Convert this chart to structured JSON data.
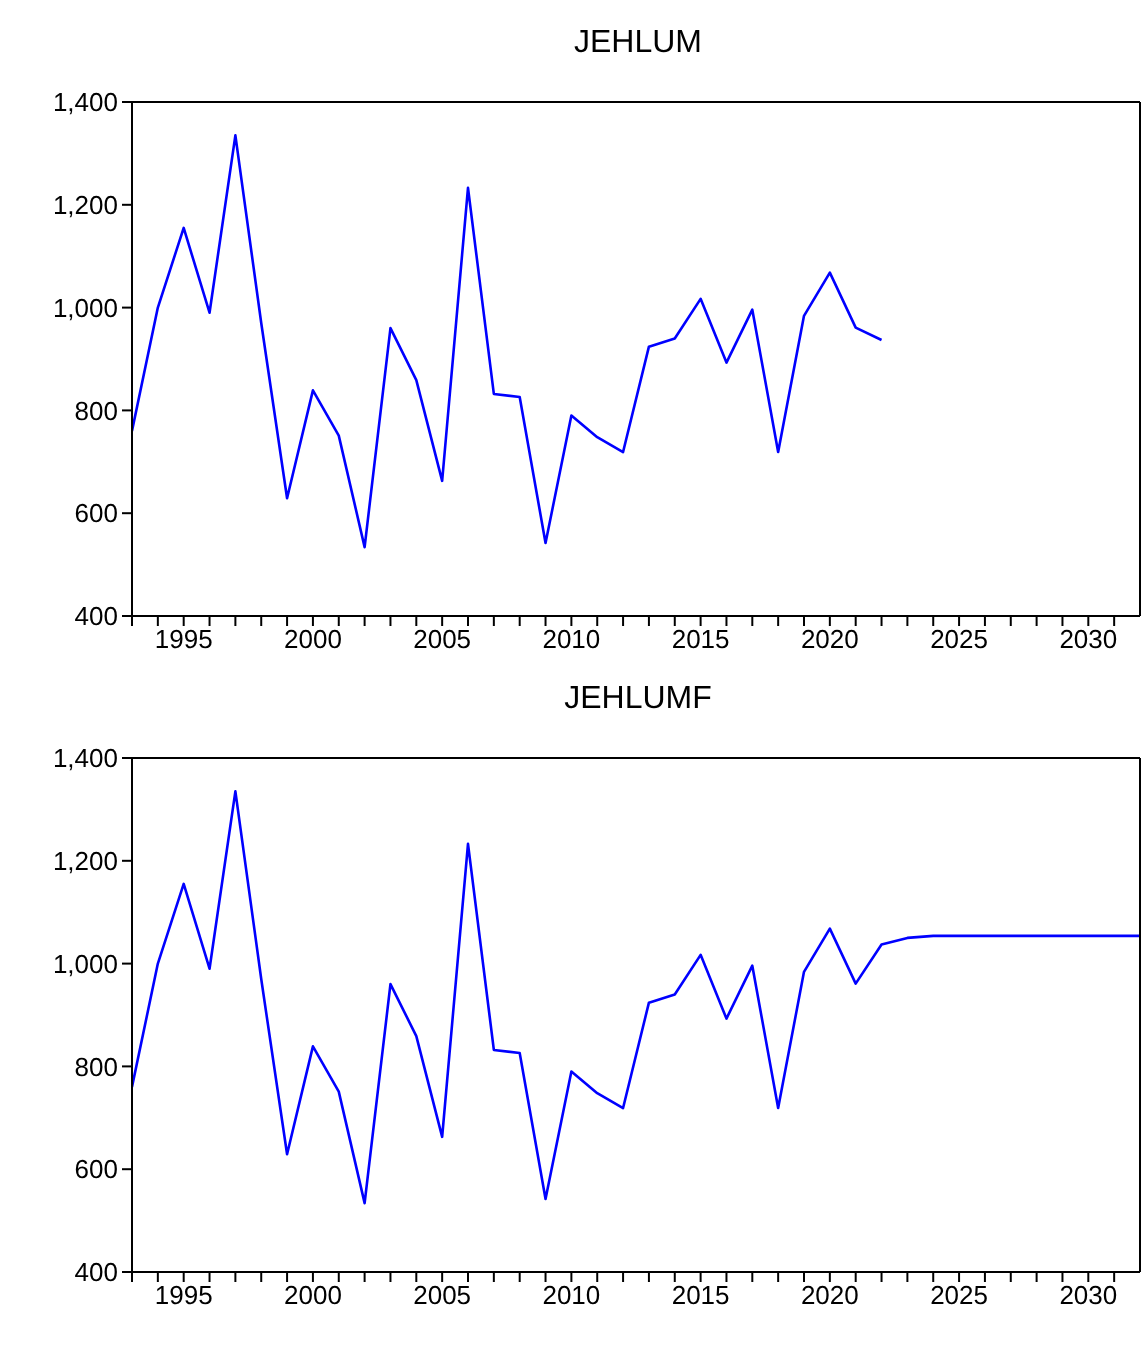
{
  "chart_data": [
    {
      "type": "line",
      "title": "JEHLUM",
      "x": [
        1993,
        1994,
        1995,
        1996,
        1997,
        1998,
        1999,
        2000,
        2001,
        2002,
        2003,
        2004,
        2005,
        2006,
        2007,
        2008,
        2009,
        2010,
        2011,
        2012,
        2013,
        2014,
        2015,
        2016,
        2017,
        2018,
        2019,
        2020,
        2021,
        2022
      ],
      "series": [
        {
          "color": "#0000ff",
          "values": [
            760,
            1000,
            1155,
            990,
            1335,
            970,
            629,
            839,
            751,
            534,
            960,
            859,
            663,
            1233,
            832,
            826,
            542,
            790,
            748,
            719,
            924,
            940,
            1017,
            893,
            996,
            719,
            984,
            1068,
            961,
            937
          ]
        }
      ],
      "xlim": [
        1993,
        2032
      ],
      "xticks": [
        {
          "value": 1993,
          "label": null
        },
        {
          "value": 1994,
          "label": null
        },
        1995,
        {
          "value": 1996,
          "label": null
        },
        {
          "value": 1997,
          "label": null
        },
        {
          "value": 1998,
          "label": null
        },
        {
          "value": 1999,
          "label": null
        },
        2000,
        {
          "value": 2001,
          "label": null
        },
        {
          "value": 2002,
          "label": null
        },
        {
          "value": 2003,
          "label": null
        },
        {
          "value": 2004,
          "label": null
        },
        2005,
        {
          "value": 2006,
          "label": null
        },
        {
          "value": 2007,
          "label": null
        },
        {
          "value": 2008,
          "label": null
        },
        {
          "value": 2009,
          "label": null
        },
        2010,
        {
          "value": 2011,
          "label": null
        },
        {
          "value": 2012,
          "label": null
        },
        {
          "value": 2013,
          "label": null
        },
        {
          "value": 2014,
          "label": null
        },
        2015,
        {
          "value": 2016,
          "label": null
        },
        {
          "value": 2017,
          "label": null
        },
        {
          "value": 2018,
          "label": null
        },
        {
          "value": 2019,
          "label": null
        },
        2020,
        {
          "value": 2021,
          "label": null
        },
        {
          "value": 2022,
          "label": null
        },
        {
          "value": 2023,
          "label": null
        },
        {
          "value": 2024,
          "label": null
        },
        2025,
        {
          "value": 2026,
          "label": null
        },
        {
          "value": 2027,
          "label": null
        },
        {
          "value": 2028,
          "label": null
        },
        {
          "value": 2029,
          "label": null
        },
        2030,
        {
          "value": 2031,
          "label": null
        }
      ],
      "ylim": [
        400,
        1400
      ],
      "yticks": [
        400,
        {
          "value": 600,
          "label": "600"
        },
        {
          "value": 800,
          "label": "800"
        },
        {
          "value": 1000,
          "label": "1,000"
        },
        {
          "value": 1200,
          "label": "1,200"
        },
        {
          "value": 1400,
          "label": "1,400"
        }
      ]
    },
    {
      "type": "line",
      "title": "JEHLUMF",
      "x": [
        1993,
        1994,
        1995,
        1996,
        1997,
        1998,
        1999,
        2000,
        2001,
        2002,
        2003,
        2004,
        2005,
        2006,
        2007,
        2008,
        2009,
        2010,
        2011,
        2012,
        2013,
        2014,
        2015,
        2016,
        2017,
        2018,
        2019,
        2020,
        2021,
        2022,
        2023,
        2024,
        2025,
        2026,
        2027,
        2028,
        2029,
        2030,
        2031,
        2032
      ],
      "series": [
        {
          "color": "#0000ff",
          "values": [
            760,
            1000,
            1155,
            990,
            1335,
            970,
            629,
            839,
            751,
            534,
            960,
            859,
            663,
            1233,
            832,
            826,
            542,
            790,
            748,
            719,
            924,
            940,
            1017,
            893,
            996,
            719,
            984,
            1068,
            961,
            1037,
            1050,
            1054,
            1054,
            1054,
            1054,
            1054,
            1054,
            1054,
            1054,
            1054
          ]
        }
      ],
      "xlim": [
        1993,
        2032
      ],
      "xticks": [
        {
          "value": 1993,
          "label": null
        },
        {
          "value": 1994,
          "label": null
        },
        1995,
        {
          "value": 1996,
          "label": null
        },
        {
          "value": 1997,
          "label": null
        },
        {
          "value": 1998,
          "label": null
        },
        {
          "value": 1999,
          "label": null
        },
        2000,
        {
          "value": 2001,
          "label": null
        },
        {
          "value": 2002,
          "label": null
        },
        {
          "value": 2003,
          "label": null
        },
        {
          "value": 2004,
          "label": null
        },
        2005,
        {
          "value": 2006,
          "label": null
        },
        {
          "value": 2007,
          "label": null
        },
        {
          "value": 2008,
          "label": null
        },
        {
          "value": 2009,
          "label": null
        },
        2010,
        {
          "value": 2011,
          "label": null
        },
        {
          "value": 2012,
          "label": null
        },
        {
          "value": 2013,
          "label": null
        },
        {
          "value": 2014,
          "label": null
        },
        2015,
        {
          "value": 2016,
          "label": null
        },
        {
          "value": 2017,
          "label": null
        },
        {
          "value": 2018,
          "label": null
        },
        {
          "value": 2019,
          "label": null
        },
        2020,
        {
          "value": 2021,
          "label": null
        },
        {
          "value": 2022,
          "label": null
        },
        {
          "value": 2023,
          "label": null
        },
        {
          "value": 2024,
          "label": null
        },
        2025,
        {
          "value": 2026,
          "label": null
        },
        {
          "value": 2027,
          "label": null
        },
        {
          "value": 2028,
          "label": null
        },
        {
          "value": 2029,
          "label": null
        },
        2030,
        {
          "value": 2031,
          "label": null
        }
      ],
      "ylim": [
        400,
        1400
      ],
      "yticks": [
        400,
        {
          "value": 600,
          "label": "600"
        },
        {
          "value": 800,
          "label": "800"
        },
        {
          "value": 1000,
          "label": "1,000"
        },
        {
          "value": 1200,
          "label": "1,200"
        },
        {
          "value": 1400,
          "label": "1,400"
        }
      ]
    }
  ]
}
